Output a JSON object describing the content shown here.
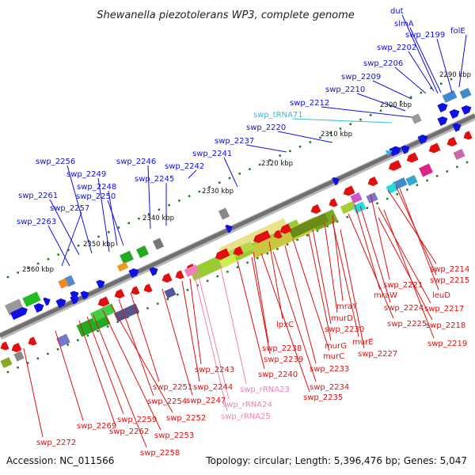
{
  "title": "Shewanella piezotolerans WP3, complete genome",
  "footer": {
    "accession": "Accession: NC_011566",
    "summary": "Topology: circular; Length: 5,396,476 bp; Genes: 5,047"
  },
  "colors": {
    "forward_gene": "#1010e0",
    "reverse_gene": "#e01010",
    "trna": "#33bbdd",
    "rrna": "#f080b8",
    "backbone": "#777777",
    "tick": "#1a7a1a"
  },
  "kbp_labels": [
    "2290 kbp",
    "2300 kbp",
    "2310 kbp",
    "2320 kbp",
    "2330 kbp",
    "2340 kbp",
    "2350 kbp",
    "2360 kbp"
  ],
  "forward_labels": [
    "dut",
    "slmA",
    "swp_2199",
    "folE",
    "swp_2202",
    "swp_2206",
    "swp_2209",
    "swp_2210",
    "swp_2212",
    "swp_tRNA71",
    "swp_2220",
    "swp_2237",
    "swp_2241",
    "swp_2242",
    "swp_2246",
    "swp_2245",
    "swp_2256",
    "swp_2249",
    "swp_2248",
    "swp_2250",
    "swp_2261",
    "swp_2257",
    "swp_2263"
  ],
  "reverse_labels": [
    "swp_2214",
    "swp_2215",
    "swp_2221",
    "leuD",
    "mraW",
    "swp_2217",
    "mraY",
    "swp_2224",
    "murD",
    "swp_2218",
    "swp_2225",
    "swp_2230",
    "swp_2219",
    "murE",
    "murG",
    "swp_2227",
    "lpxC",
    "murC",
    "swp_2238",
    "swp_2239",
    "swp_2233",
    "swp_2243",
    "swp_2240",
    "swp_2244",
    "swp_rRNA23",
    "swp_2234",
    "swp_2251",
    "swp_2247",
    "swp_2235",
    "swp_2254",
    "swp_rRNA24",
    "swp_2252",
    "swp_rRNA25",
    "swp_2259",
    "swp_2269",
    "swp_2262",
    "swp_2253",
    "swp_2272",
    "swp_2258"
  ]
}
